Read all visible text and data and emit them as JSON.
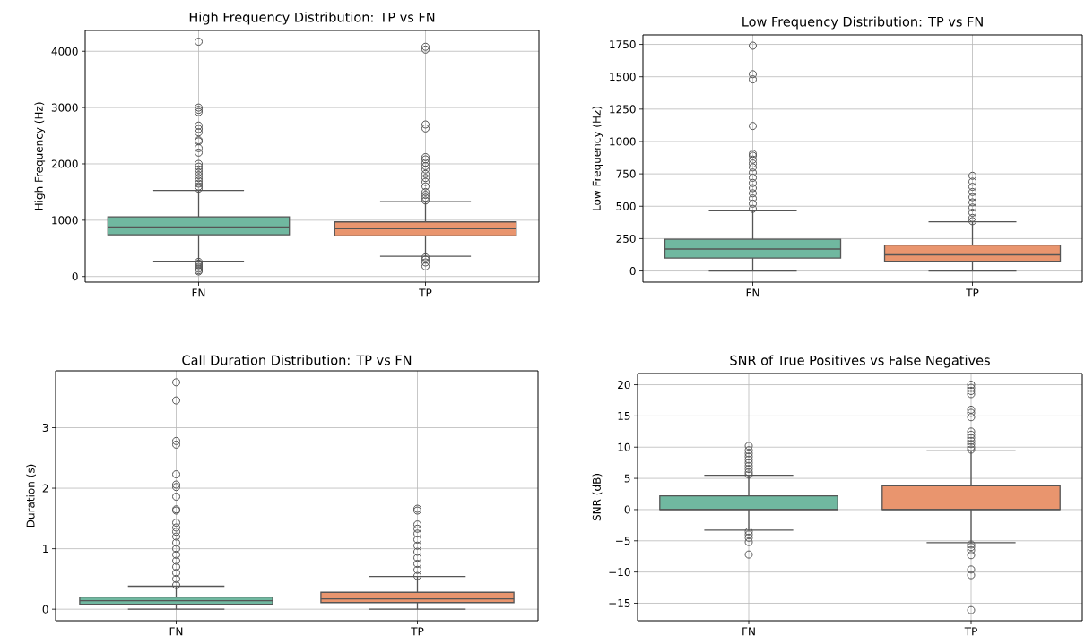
{
  "chart_data": [
    {
      "type": "box",
      "title": "High Frequency Distribution: TP vs FN",
      "ylabel": "High Frequency (Hz)",
      "categories": [
        "FN",
        "TP"
      ],
      "colors": [
        "#70b8a0",
        "#e9956e"
      ],
      "grid": true,
      "ylim": [
        -100,
        4370
      ],
      "yticks": [
        0,
        1000,
        2000,
        3000,
        4000
      ],
      "boxes": [
        {
          "low": 270,
          "q1": 740,
          "median": 880,
          "q3": 1060,
          "high": 1530,
          "outliers": [
            4170,
            3000,
            2960,
            2920,
            2680,
            2620,
            2560,
            2420,
            2400,
            2280,
            2200,
            2000,
            1950,
            1900,
            1850,
            1800,
            1750,
            1700,
            1650,
            1600,
            1560,
            260,
            230,
            200,
            170,
            140,
            110,
            90
          ]
        },
        {
          "low": 360,
          "q1": 720,
          "median": 850,
          "q3": 970,
          "high": 1330,
          "outliers": [
            4080,
            4030,
            2700,
            2630,
            2120,
            2080,
            2020,
            1960,
            1900,
            1820,
            1750,
            1680,
            1600,
            1500,
            1450,
            1400,
            1350,
            340,
            300,
            250,
            180
          ]
        }
      ]
    },
    {
      "type": "box",
      "title": "Low Frequency Distribution: TP vs FN",
      "ylabel": "Low Frequency (Hz)",
      "categories": [
        "FN",
        "TP"
      ],
      "colors": [
        "#70b8a0",
        "#e9956e"
      ],
      "grid": true,
      "ylim": [
        -86,
        1823
      ],
      "yticks": [
        0,
        250,
        500,
        750,
        1000,
        1250,
        1500,
        1750
      ],
      "boxes": [
        {
          "low": 0,
          "q1": 100,
          "median": 170,
          "q3": 245,
          "high": 465,
          "outliers": [
            1740,
            1520,
            1480,
            1120,
            905,
            890,
            860,
            830,
            800,
            760,
            720,
            680,
            640,
            600,
            560,
            520,
            480
          ]
        },
        {
          "low": 0,
          "q1": 75,
          "median": 125,
          "q3": 200,
          "high": 380,
          "outliers": [
            735,
            690,
            650,
            610,
            570,
            530,
            490,
            450,
            410,
            385
          ]
        }
      ]
    },
    {
      "type": "box",
      "title": "Call Duration Distribution: TP vs FN",
      "ylabel": "Duration (s)",
      "categories": [
        "FN",
        "TP"
      ],
      "colors": [
        "#70b8a0",
        "#e9956e"
      ],
      "grid": true,
      "ylim": [
        -0.19,
        3.94
      ],
      "yticks": [
        0,
        1,
        2,
        3
      ],
      "boxes": [
        {
          "low": 0,
          "q1": 0.08,
          "median": 0.14,
          "q3": 0.2,
          "high": 0.38,
          "outliers": [
            3.75,
            3.45,
            2.78,
            2.72,
            2.23,
            2.06,
            2.02,
            1.86,
            1.65,
            1.63,
            1.43,
            1.35,
            1.28,
            1.2,
            1.1,
            1.0,
            0.9,
            0.8,
            0.7,
            0.6,
            0.5,
            0.4
          ]
        },
        {
          "low": 0,
          "q1": 0.11,
          "median": 0.17,
          "q3": 0.28,
          "high": 0.54,
          "outliers": [
            1.66,
            1.63,
            1.4,
            1.33,
            1.25,
            1.15,
            1.05,
            0.95,
            0.85,
            0.75,
            0.65,
            0.55
          ]
        }
      ]
    },
    {
      "type": "box",
      "title": "SNR of True Positives vs False Negatives",
      "ylabel": "SNR (dB)",
      "categories": [
        "FN",
        "TP"
      ],
      "colors": [
        "#70b8a0",
        "#e9956e"
      ],
      "grid": true,
      "ylim": [
        -17.8,
        21.8
      ],
      "yticks": [
        {
          "value": -15,
          "label": "−15"
        },
        {
          "value": -10,
          "label": "−10"
        },
        {
          "value": -5,
          "label": "−5"
        },
        0,
        5,
        10,
        15,
        20
      ],
      "boxes": [
        {
          "low": -3.3,
          "q1": 0,
          "median": 0,
          "q3": 2.2,
          "high": 5.5,
          "outliers": [
            10.2,
            9.5,
            9,
            8.5,
            8,
            7.5,
            7,
            6.5,
            6,
            5.6,
            -3.5,
            -4,
            -4.5,
            -5.2,
            -7.2
          ]
        },
        {
          "low": -5.3,
          "q1": 0,
          "median": 0,
          "q3": 3.8,
          "high": 9.4,
          "outliers": [
            20,
            19.5,
            19,
            18.5,
            16,
            15.5,
            14.8,
            12.5,
            12,
            11.5,
            11,
            10.5,
            10,
            9.6,
            -5.6,
            -6,
            -6.5,
            -7.3,
            -9.6,
            -10.5,
            -16.1
          ]
        }
      ]
    }
  ]
}
